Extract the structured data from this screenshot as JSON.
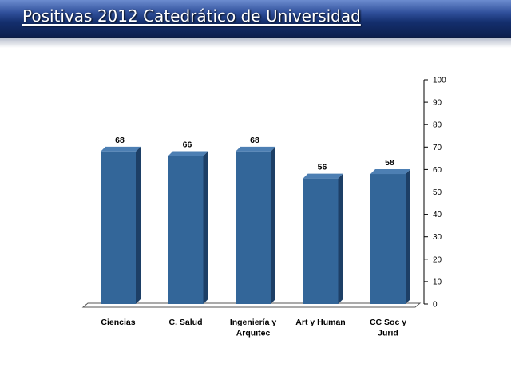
{
  "title": "Positivas 2012 Catedrático de Universidad",
  "colors": {
    "bar_front": "#336699",
    "bar_side": "#1d3f66",
    "bar_top": "#4d7fb3",
    "axis": "#000000",
    "title_bar": "#142f6e"
  },
  "chart_data": {
    "type": "bar",
    "categories": [
      "Ciencias",
      "C. Salud",
      "Ingeniería y Arquitec",
      "Art y Human",
      "CC Soc  y Jurid"
    ],
    "category_lines": [
      [
        "Ciencias"
      ],
      [
        "C. Salud"
      ],
      [
        "Ingeniería y",
        "Arquitec"
      ],
      [
        "Art y Human"
      ],
      [
        "CC Soc  y",
        "Jurid"
      ]
    ],
    "values": [
      68,
      66,
      68,
      56,
      58
    ],
    "ylim": [
      0,
      100
    ],
    "yticks": [
      0,
      10,
      20,
      30,
      40,
      50,
      60,
      70,
      80,
      90,
      100
    ],
    "y_axis_side": "right",
    "grid": false,
    "legend": "none",
    "data_labels": true,
    "style": "3d-columns"
  }
}
